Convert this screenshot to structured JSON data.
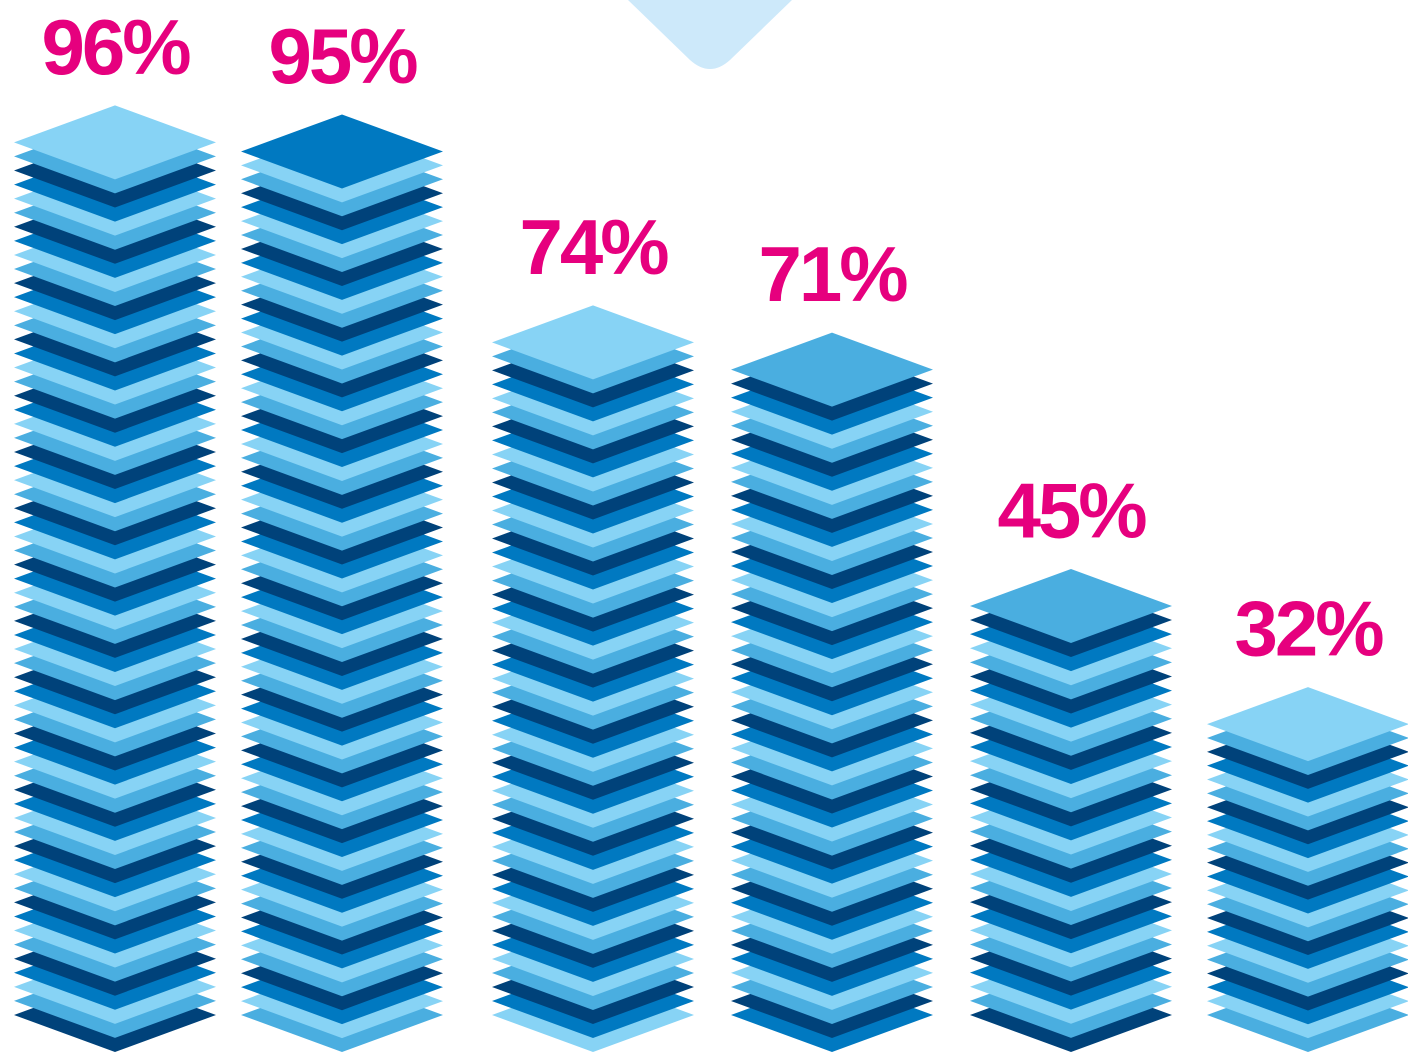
{
  "chart_data": {
    "type": "bar",
    "values": [
      96,
      95,
      74,
      71,
      45,
      32
    ],
    "value_labels": [
      "96%",
      "95%",
      "74%",
      "71%",
      "45%",
      "32%"
    ],
    "colors": [
      "#00427a",
      "#4aaee0",
      "#87d3f5",
      "#0079c1"
    ],
    "label_color": "#e6007e"
  }
}
